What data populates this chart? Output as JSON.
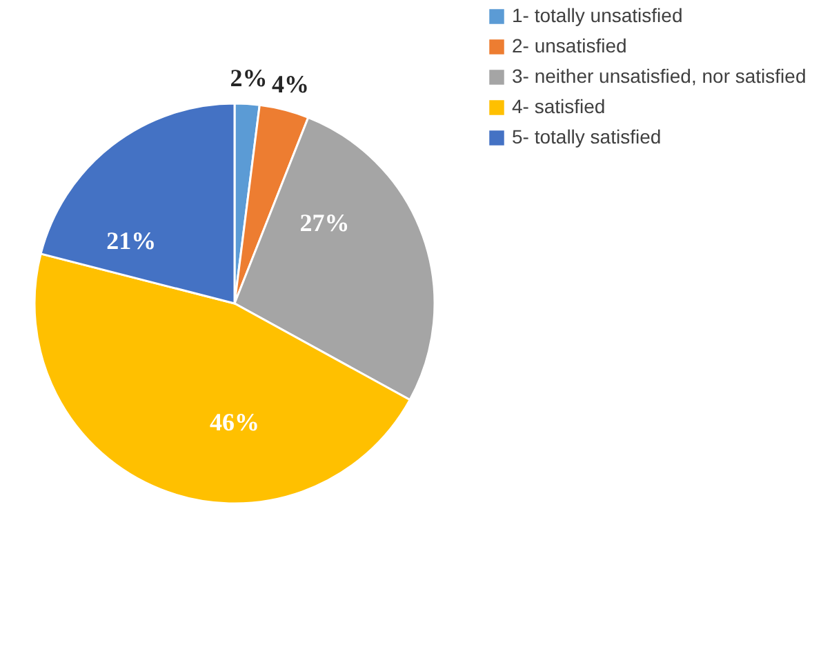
{
  "chart_data": {
    "type": "pie",
    "categories": [
      "1- totally unsatisfied",
      "2- unsatisfied",
      "3- neither unsatisfied, nor satisfied",
      "4- satisfied",
      "5- totally satisfied"
    ],
    "values": [
      2,
      4,
      27,
      46,
      21
    ],
    "colors": [
      "#5b9bd5",
      "#ed7d31",
      "#a5a5a5",
      "#ffc000",
      "#4472c4"
    ],
    "value_labels": [
      "2%",
      "4%",
      "27%",
      "46%",
      "21%"
    ],
    "legend": "right"
  }
}
